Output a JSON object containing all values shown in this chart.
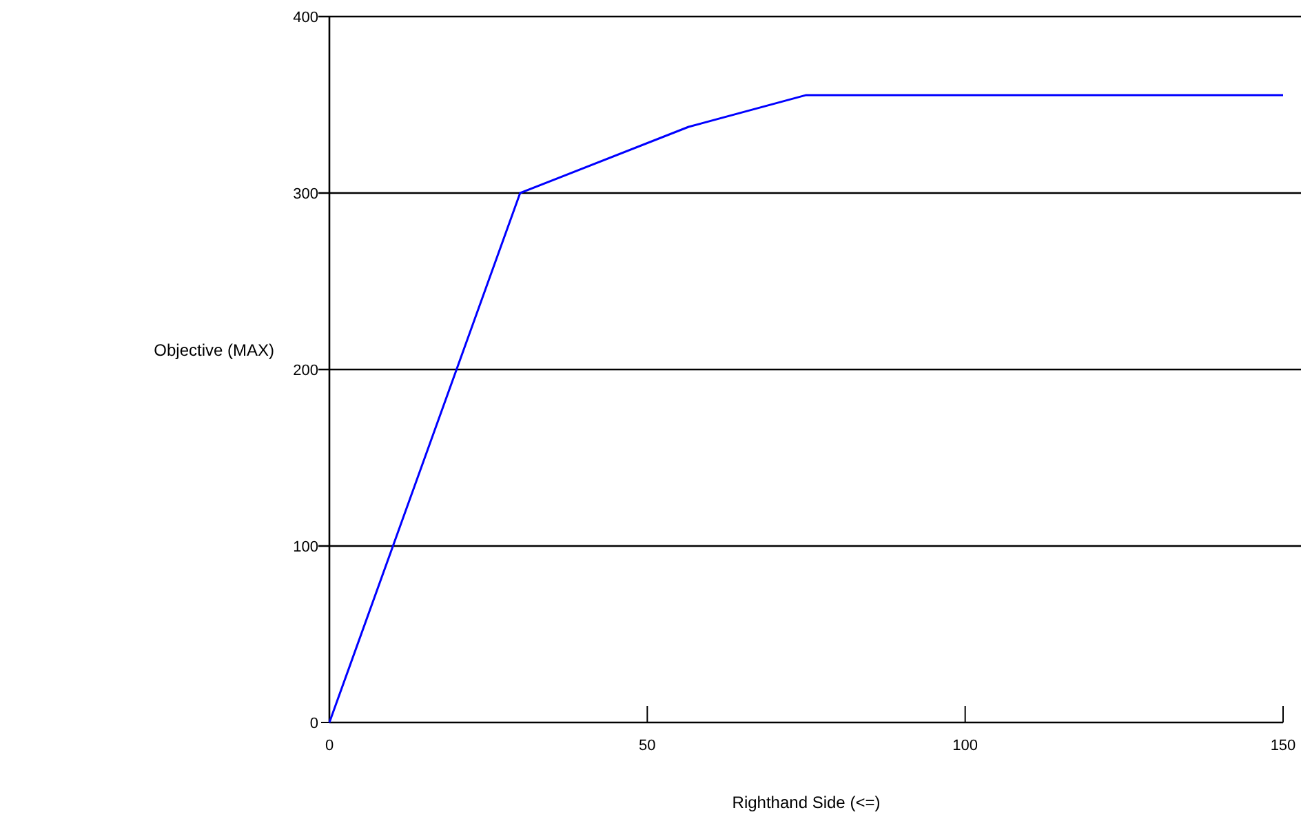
{
  "chart_data": {
    "type": "line",
    "xlabel": "Righthand Side (<=)",
    "ylabel": "Objective (MAX)",
    "x": [
      0,
      30,
      56.5,
      75,
      150
    ],
    "series": [
      {
        "color": "#0000ff",
        "values": [
          0,
          300,
          337.5,
          355.5,
          355.5
        ]
      }
    ],
    "xlim": [
      0,
      150
    ],
    "xticks": [
      0,
      50,
      100,
      150
    ],
    "ylim": [
      0,
      400
    ],
    "yticks": [
      0,
      100,
      200,
      300,
      400
    ],
    "grid": "y",
    "marker": "none",
    "line_style": "solid"
  }
}
